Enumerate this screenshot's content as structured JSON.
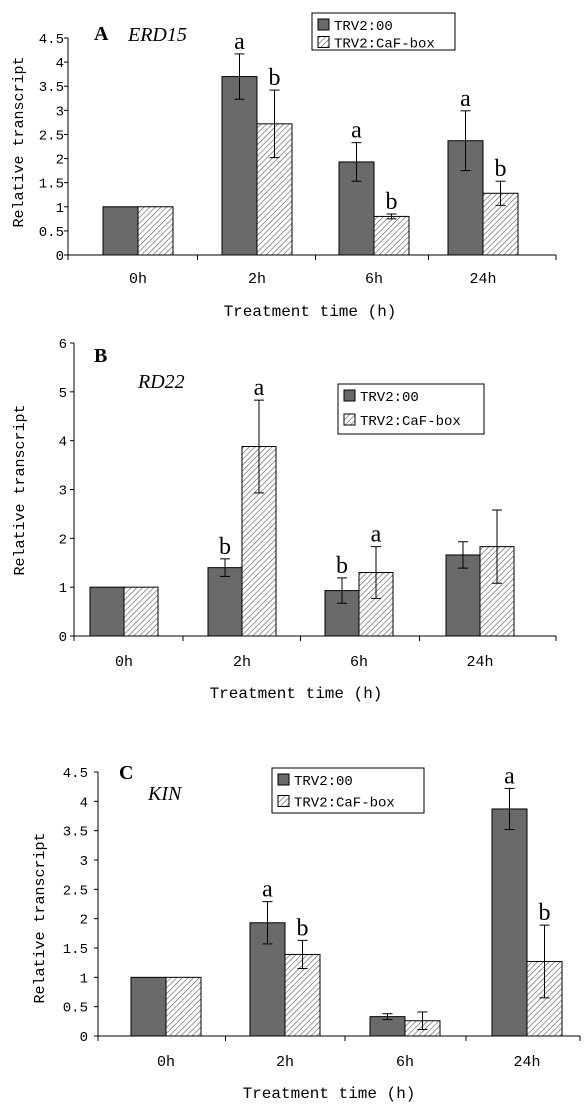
{
  "colors": {
    "dark": "#6a6a6a",
    "hatch": "#ffffff",
    "axis": "#000000"
  },
  "legend_items": [
    "TRV2:00",
    "TRV2:CaF-box"
  ],
  "chart_data": [
    {
      "type": "bar",
      "panel": "A",
      "gene": "ERD15",
      "xlabel": "Treatment time (h)",
      "ylabel": "Relative transcript",
      "categories": [
        "0h",
        "2h",
        "6h",
        "24h"
      ],
      "yticks": [
        "0",
        "0.5",
        "1",
        "1.5",
        "2",
        "2.5",
        "3",
        "3.5",
        "4",
        "4.5"
      ],
      "ylim": [
        0,
        4.5
      ],
      "series": [
        {
          "name": "TRV2:00",
          "values": [
            1.0,
            3.7,
            1.93,
            2.37
          ],
          "errors": [
            0,
            0.47,
            0.4,
            0.62
          ],
          "labels": [
            "",
            "a",
            "a",
            "a"
          ]
        },
        {
          "name": "TRV2:CaF-box",
          "values": [
            1.0,
            2.72,
            0.8,
            1.28
          ],
          "errors": [
            0,
            0.7,
            0.05,
            0.25
          ],
          "labels": [
            "",
            "b",
            "b",
            "b"
          ]
        }
      ],
      "legend_position": "top-right"
    },
    {
      "type": "bar",
      "panel": "B",
      "gene": "RD22",
      "xlabel": "Treatment time (h)",
      "ylabel": "Relative transcript",
      "categories": [
        "0h",
        "2h",
        "6h",
        "24h"
      ],
      "yticks": [
        "0",
        "1",
        "2",
        "3",
        "4",
        "5",
        "6"
      ],
      "ylim": [
        0,
        6
      ],
      "series": [
        {
          "name": "TRV2:00",
          "values": [
            1.0,
            1.4,
            0.93,
            1.66
          ],
          "errors": [
            0,
            0.18,
            0.26,
            0.27
          ],
          "labels": [
            "",
            "b",
            "b",
            ""
          ]
        },
        {
          "name": "TRV2:CaF-box",
          "values": [
            1.0,
            3.88,
            1.3,
            1.83
          ],
          "errors": [
            0,
            0.95,
            0.53,
            0.75
          ],
          "labels": [
            "",
            "a",
            "a",
            ""
          ]
        }
      ],
      "legend_position": "top-right"
    },
    {
      "type": "bar",
      "panel": "C",
      "gene": "KIN",
      "xlabel": "Treatment time (h)",
      "ylabel": "Relative transcript",
      "categories": [
        "0h",
        "2h",
        "6h",
        "24h"
      ],
      "yticks": [
        "0",
        "0.5",
        "1",
        "1.5",
        "2",
        "2.5",
        "3",
        "3.5",
        "4",
        "4.5"
      ],
      "ylim": [
        0,
        4.5
      ],
      "series": [
        {
          "name": "TRV2:00",
          "values": [
            1.0,
            1.93,
            0.33,
            3.87
          ],
          "errors": [
            0,
            0.36,
            0.05,
            0.35
          ],
          "labels": [
            "",
            "a",
            "",
            "a"
          ]
        },
        {
          "name": "TRV2:CaF-box",
          "values": [
            1.0,
            1.39,
            0.26,
            1.27
          ],
          "errors": [
            0,
            0.24,
            0.15,
            0.62
          ],
          "labels": [
            "",
            "b",
            "",
            "b"
          ]
        }
      ],
      "legend_position": "top-center"
    }
  ]
}
